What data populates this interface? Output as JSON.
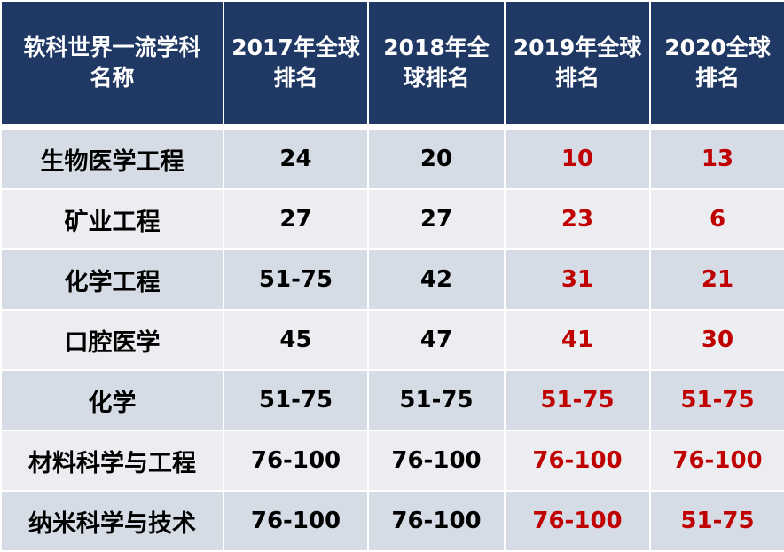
{
  "colors": {
    "header_bg": "#1f3864",
    "row_odd": "#d6dce5",
    "row_even": "#ebedf0",
    "highlight": "#c00000"
  },
  "table": {
    "headers": [
      [
        "软科世界一流学科",
        "名称"
      ],
      [
        "2017年全球",
        "排名"
      ],
      [
        "2018年全",
        "球排名"
      ],
      [
        "2019年全球",
        "排名"
      ],
      [
        "2020全球",
        "排名"
      ]
    ],
    "rows": [
      [
        "生物医学工程",
        "24",
        "20",
        "10",
        "13"
      ],
      [
        "矿业工程",
        "27",
        "27",
        "23",
        "6"
      ],
      [
        "化学工程",
        "51-75",
        "42",
        "31",
        "21"
      ],
      [
        "口腔医学",
        "45",
        "47",
        "41",
        "30"
      ],
      [
        "化学",
        "51-75",
        "51-75",
        "51-75",
        "51-75"
      ],
      [
        "材料科学与工程",
        "76-100",
        "76-100",
        "76-100",
        "76-100"
      ],
      [
        "纳米科学与技术",
        "76-100",
        "76-100",
        "76-100",
        "51-75"
      ]
    ]
  }
}
